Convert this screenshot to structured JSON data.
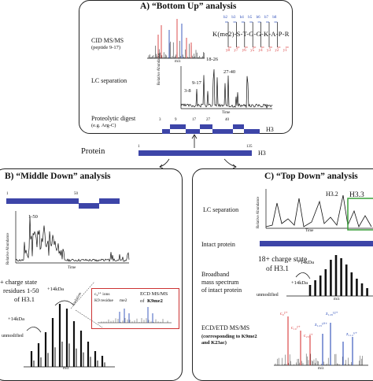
{
  "panel_a": {
    "title": "A) “Bottom Up” analysis",
    "cid_label": "CID MS/MS",
    "cid_sub": "(peptide 9-17)",
    "lc_label": "LC separation",
    "digest_label": "Proteolytic digest",
    "digest_sub": "(e.g. Arg-C)",
    "sequence": "K(me2)-S-T-G-G-K-A-P-R",
    "b_ions": [
      "b2",
      "b3",
      "b4",
      "b5",
      "b6",
      "b7",
      "b8"
    ],
    "y_ions": [
      "y8",
      "y7",
      "y6",
      "y5",
      "y4",
      "y3",
      "y2",
      "y1"
    ],
    "peak_labels": [
      "18-26",
      "27-40",
      "9-17",
      "3-8"
    ],
    "axis_x": "Time",
    "axis_y": "Relative Abundance",
    "axis_mz": "m/z",
    "digest_numbers": [
      "3",
      "9",
      "17",
      "27",
      "40"
    ],
    "digest_end": "3",
    "protein_label": "H3",
    "spectrum_peak_labels": [
      "y1",
      "y2",
      "b5",
      "y7",
      "y8"
    ]
  },
  "protein": {
    "label": "Protein",
    "start": "1",
    "end": "135",
    "name": "H3"
  },
  "panel_b": {
    "title": "B) “Middle Down” analysis",
    "range_start": "1",
    "range_mid": "50",
    "peak_label": "1-50",
    "axis_x": "Time",
    "axis_y": "Relative Abundance",
    "charge_text": "+ charge state",
    "residues_text": "residues 1-50",
    "of_text": "of H3.1",
    "isolation": "isolation",
    "plus14a": "+14kDa",
    "plus14b": "+14kDa",
    "unmodified": "unmodified",
    "axis_mz": "m/z",
    "inset": {
      "ions": "c₉²⁺ ions",
      "k9": "K9 residue",
      "me2": "me2",
      "ecd": "ECD MS/MS",
      "of": "of",
      "k9me2": "K9me2"
    }
  },
  "panel_c": {
    "title": "C) “Top Down” analysis",
    "lc_label": "LC separation",
    "h32": "H3.2",
    "h33": "H3.3",
    "axis_x": "Time",
    "axis_y": "Relative Abundance",
    "intact_label": "Intact protein",
    "broadband1": "Broadband",
    "broadband2": "mass spectrum",
    "broadband3": "of intact protein",
    "charge18": "18+ charge state",
    "of_h31": "of H3.1",
    "plus14a": "+14kDa",
    "plus14b": "+14kDa",
    "unmodified": "unmodified",
    "axis_mz": "m/z",
    "ecd1": "ECD/ETD MS/MS",
    "ecd2": "(corresponding to K9me2",
    "ecd3": "and K23ac)",
    "ion_labels": [
      "c₉²⁺",
      "c₁₀²⁺",
      "c₂₃²⁺",
      "z₁₂₃¹⁰⁺",
      "z₁₂₈¹²⁺",
      "z₁₁₂⁶⁺"
    ]
  },
  "colors": {
    "bar": "#3d45a8",
    "red": "#d83a3a",
    "green": "#3aa03a",
    "blue_ion": "#2a4bb8",
    "inset_border": "#cc3333"
  }
}
